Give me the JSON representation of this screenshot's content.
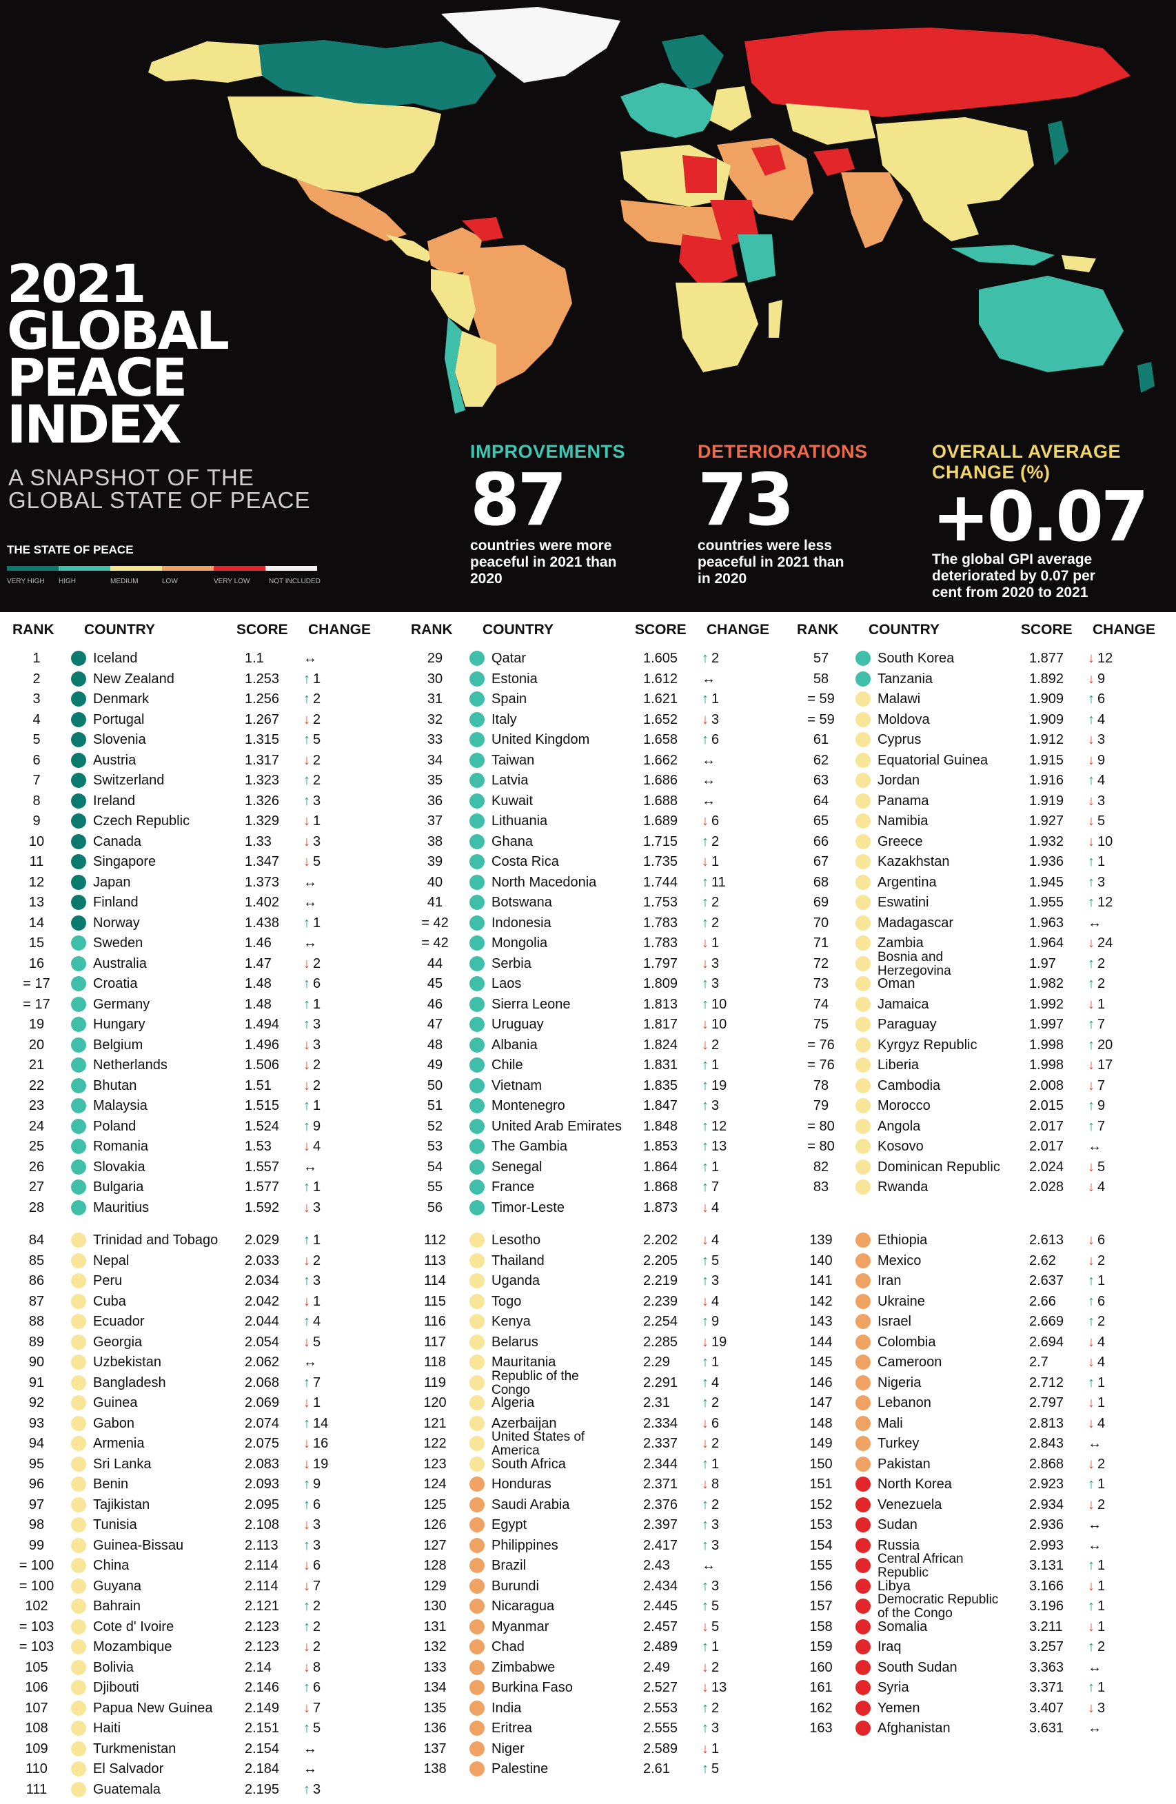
{
  "header": {
    "title_lines": [
      "2021",
      "GLOBAL",
      "PEACE",
      "INDEX"
    ],
    "subtitle_lines": [
      "A SNAPSHOT OF THE",
      "GLOBAL STATE OF PEACE"
    ]
  },
  "legend": {
    "title": "THE STATE OF PEACE",
    "items": [
      {
        "label": "VERY HIGH",
        "color": "#0b7a6e"
      },
      {
        "label": "HIGH",
        "color": "#3fbfaa"
      },
      {
        "label": "MEDIUM",
        "color": "#f4e68e"
      },
      {
        "label": "LOW",
        "color": "#f0a262"
      },
      {
        "label": "VERY LOW",
        "color": "#e3262a"
      },
      {
        "label": "NOT INCLUDED",
        "color": "#f2f2f2"
      }
    ]
  },
  "stats": [
    {
      "label": "IMPROVEMENTS",
      "value": "87",
      "desc_lines": [
        "countries were more",
        "peaceful in 2021 than",
        "2020"
      ],
      "color": "#3fc7b3"
    },
    {
      "label": "DETERIORATIONS",
      "value": "73",
      "desc_lines": [
        "countries were less",
        "peaceful in 2021 than",
        "in 2020"
      ],
      "color": "#ef6a4a"
    },
    {
      "label": "OVERALL AVERAGE",
      "label2": "CHANGE (%)",
      "value": "+0.07",
      "desc_lines": [
        "The global GPI average",
        "deteriorated by 0.07 per",
        "cent from 2020 to 2021"
      ],
      "color": "#f2d56a"
    }
  ],
  "columns": {
    "rank": "RANK",
    "country": "COUNTRY",
    "score": "SCORE",
    "change": "CHANGE"
  },
  "colors": {
    "very_high": "#0b7a6e",
    "high": "#3fbfaa",
    "medium": "#f8e598",
    "low": "#f0a262",
    "very_low": "#e3262a"
  },
  "rows": [
    [
      "1",
      "Iceland",
      "1.1",
      "eq",
      "",
      "very_high"
    ],
    [
      "2",
      "New Zealand",
      "1.253",
      "up",
      "1",
      "very_high"
    ],
    [
      "3",
      "Denmark",
      "1.256",
      "up",
      "2",
      "very_high"
    ],
    [
      "4",
      "Portugal",
      "1.267",
      "dn",
      "2",
      "very_high"
    ],
    [
      "5",
      "Slovenia",
      "1.315",
      "up",
      "5",
      "very_high"
    ],
    [
      "6",
      "Austria",
      "1.317",
      "dn",
      "2",
      "very_high"
    ],
    [
      "7",
      "Switzerland",
      "1.323",
      "up",
      "2",
      "very_high"
    ],
    [
      "8",
      "Ireland",
      "1.326",
      "up",
      "3",
      "very_high"
    ],
    [
      "9",
      "Czech Republic",
      "1.329",
      "dn",
      "1",
      "very_high"
    ],
    [
      "10",
      "Canada",
      "1.33",
      "dn",
      "3",
      "very_high"
    ],
    [
      "11",
      "Singapore",
      "1.347",
      "dn",
      "5",
      "very_high"
    ],
    [
      "12",
      "Japan",
      "1.373",
      "eq",
      "",
      "very_high"
    ],
    [
      "13",
      "Finland",
      "1.402",
      "eq",
      "",
      "very_high"
    ],
    [
      "14",
      "Norway",
      "1.438",
      "up",
      "1",
      "very_high"
    ],
    [
      "15",
      "Sweden",
      "1.46",
      "eq",
      "",
      "high"
    ],
    [
      "16",
      "Australia",
      "1.47",
      "dn",
      "2",
      "high"
    ],
    [
      "= 17",
      "Croatia",
      "1.48",
      "up",
      "6",
      "high"
    ],
    [
      "= 17",
      "Germany",
      "1.48",
      "up",
      "1",
      "high"
    ],
    [
      "19",
      "Hungary",
      "1.494",
      "up",
      "3",
      "high"
    ],
    [
      "20",
      "Belgium",
      "1.496",
      "dn",
      "3",
      "high"
    ],
    [
      "21",
      "Netherlands",
      "1.506",
      "dn",
      "2",
      "high"
    ],
    [
      "22",
      "Bhutan",
      "1.51",
      "dn",
      "2",
      "high"
    ],
    [
      "23",
      "Malaysia",
      "1.515",
      "up",
      "1",
      "high"
    ],
    [
      "24",
      "Poland",
      "1.524",
      "up",
      "9",
      "high"
    ],
    [
      "25",
      "Romania",
      "1.53",
      "dn",
      "4",
      "high"
    ],
    [
      "26",
      "Slovakia",
      "1.557",
      "eq",
      "",
      "high"
    ],
    [
      "27",
      "Bulgaria",
      "1.577",
      "up",
      "1",
      "high"
    ],
    [
      "28",
      "Mauritius",
      "1.592",
      "dn",
      "3",
      "high"
    ],
    [
      "29",
      "Qatar",
      "1.605",
      "up",
      "2",
      "high"
    ],
    [
      "30",
      "Estonia",
      "1.612",
      "eq",
      "",
      "high"
    ],
    [
      "31",
      "Spain",
      "1.621",
      "up",
      "1",
      "high"
    ],
    [
      "32",
      "Italy",
      "1.652",
      "dn",
      "3",
      "high"
    ],
    [
      "33",
      "United Kingdom",
      "1.658",
      "up",
      "6",
      "high"
    ],
    [
      "34",
      "Taiwan",
      "1.662",
      "eq",
      "",
      "high"
    ],
    [
      "35",
      "Latvia",
      "1.686",
      "eq",
      "",
      "high"
    ],
    [
      "36",
      "Kuwait",
      "1.688",
      "eq",
      "",
      "high"
    ],
    [
      "37",
      "Lithuania",
      "1.689",
      "dn",
      "6",
      "high"
    ],
    [
      "38",
      "Ghana",
      "1.715",
      "up",
      "2",
      "high"
    ],
    [
      "39",
      "Costa Rica",
      "1.735",
      "dn",
      "1",
      "high"
    ],
    [
      "40",
      "North Macedonia",
      "1.744",
      "up",
      "11",
      "high"
    ],
    [
      "41",
      "Botswana",
      "1.753",
      "up",
      "2",
      "high"
    ],
    [
      "= 42",
      "Indonesia",
      "1.783",
      "up",
      "2",
      "high"
    ],
    [
      "= 42",
      "Mongolia",
      "1.783",
      "dn",
      "1",
      "high"
    ],
    [
      "44",
      "Serbia",
      "1.797",
      "dn",
      "3",
      "high"
    ],
    [
      "45",
      "Laos",
      "1.809",
      "up",
      "3",
      "high"
    ],
    [
      "46",
      "Sierra Leone",
      "1.813",
      "up",
      "10",
      "high"
    ],
    [
      "47",
      "Uruguay",
      "1.817",
      "dn",
      "10",
      "high"
    ],
    [
      "48",
      "Albania",
      "1.824",
      "dn",
      "2",
      "high"
    ],
    [
      "49",
      "Chile",
      "1.831",
      "up",
      "1",
      "high"
    ],
    [
      "50",
      "Vietnam",
      "1.835",
      "up",
      "19",
      "high"
    ],
    [
      "51",
      "Montenegro",
      "1.847",
      "up",
      "3",
      "high"
    ],
    [
      "52",
      "United Arab Emirates",
      "1.848",
      "up",
      "12",
      "high"
    ],
    [
      "53",
      "The Gambia",
      "1.853",
      "up",
      "13",
      "high"
    ],
    [
      "54",
      "Senegal",
      "1.864",
      "up",
      "1",
      "high"
    ],
    [
      "55",
      "France",
      "1.868",
      "up",
      "7",
      "high"
    ],
    [
      "56",
      "Timor-Leste",
      "1.873",
      "dn",
      "4",
      "high"
    ],
    [
      "57",
      "South Korea",
      "1.877",
      "dn",
      "12",
      "high"
    ],
    [
      "58",
      "Tanzania",
      "1.892",
      "dn",
      "9",
      "high"
    ],
    [
      "= 59",
      "Malawi",
      "1.909",
      "up",
      "6",
      "medium"
    ],
    [
      "= 59",
      "Moldova",
      "1.909",
      "up",
      "4",
      "medium"
    ],
    [
      "61",
      "Cyprus",
      "1.912",
      "dn",
      "3",
      "medium"
    ],
    [
      "62",
      "Equatorial Guinea",
      "1.915",
      "dn",
      "9",
      "medium"
    ],
    [
      "63",
      "Jordan",
      "1.916",
      "up",
      "4",
      "medium"
    ],
    [
      "64",
      "Panama",
      "1.919",
      "dn",
      "3",
      "medium"
    ],
    [
      "65",
      "Namibia",
      "1.927",
      "dn",
      "5",
      "medium"
    ],
    [
      "66",
      "Greece",
      "1.932",
      "dn",
      "10",
      "medium"
    ],
    [
      "67",
      "Kazakhstan",
      "1.936",
      "up",
      "1",
      "medium"
    ],
    [
      "68",
      "Argentina",
      "1.945",
      "up",
      "3",
      "medium"
    ],
    [
      "69",
      "Eswatini",
      "1.955",
      "up",
      "12",
      "medium"
    ],
    [
      "70",
      "Madagascar",
      "1.963",
      "eq",
      "",
      "medium"
    ],
    [
      "71",
      "Zambia",
      "1.964",
      "dn",
      "24",
      "medium"
    ],
    [
      "72",
      "Bosnia and|Herzegovina",
      "1.97",
      "up",
      "2",
      "medium"
    ],
    [
      "73",
      "Oman",
      "1.982",
      "up",
      "2",
      "medium"
    ],
    [
      "74",
      "Jamaica",
      "1.992",
      "dn",
      "1",
      "medium"
    ],
    [
      "75",
      "Paraguay",
      "1.997",
      "up",
      "7",
      "medium"
    ],
    [
      "= 76",
      "Kyrgyz Republic",
      "1.998",
      "up",
      "20",
      "medium"
    ],
    [
      "= 76",
      "Liberia",
      "1.998",
      "dn",
      "17",
      "medium"
    ],
    [
      "78",
      "Cambodia",
      "2.008",
      "dn",
      "7",
      "medium"
    ],
    [
      "79",
      "Morocco",
      "2.015",
      "up",
      "9",
      "medium"
    ],
    [
      "= 80",
      "Angola",
      "2.017",
      "up",
      "7",
      "medium"
    ],
    [
      "= 80",
      "Kosovo",
      "2.017",
      "eq",
      "",
      "medium"
    ],
    [
      "82",
      "Dominican Republic",
      "2.024",
      "dn",
      "5",
      "medium"
    ],
    [
      "83",
      "Rwanda",
      "2.028",
      "dn",
      "4",
      "medium"
    ],
    [
      "84",
      "Trinidad and Tobago",
      "2.029",
      "up",
      "1",
      "medium"
    ],
    [
      "85",
      "Nepal",
      "2.033",
      "dn",
      "2",
      "medium"
    ],
    [
      "86",
      "Peru",
      "2.034",
      "up",
      "3",
      "medium"
    ],
    [
      "87",
      "Cuba",
      "2.042",
      "dn",
      "1",
      "medium"
    ],
    [
      "88",
      "Ecuador",
      "2.044",
      "up",
      "4",
      "medium"
    ],
    [
      "89",
      "Georgia",
      "2.054",
      "dn",
      "5",
      "medium"
    ],
    [
      "90",
      "Uzbekistan",
      "2.062",
      "eq",
      "",
      "medium"
    ],
    [
      "91",
      "Bangladesh",
      "2.068",
      "up",
      "7",
      "medium"
    ],
    [
      "92",
      "Guinea",
      "2.069",
      "dn",
      "1",
      "medium"
    ],
    [
      "93",
      "Gabon",
      "2.074",
      "up",
      "14",
      "medium"
    ],
    [
      "94",
      "Armenia",
      "2.075",
      "dn",
      "16",
      "medium"
    ],
    [
      "95",
      "Sri Lanka",
      "2.083",
      "dn",
      "19",
      "medium"
    ],
    [
      "96",
      "Benin",
      "2.093",
      "up",
      "9",
      "medium"
    ],
    [
      "97",
      "Tajikistan",
      "2.095",
      "up",
      "6",
      "medium"
    ],
    [
      "98",
      "Tunisia",
      "2.108",
      "dn",
      "3",
      "medium"
    ],
    [
      "99",
      "Guinea-Bissau",
      "2.113",
      "up",
      "3",
      "medium"
    ],
    [
      "= 100",
      "China",
      "2.114",
      "dn",
      "6",
      "medium"
    ],
    [
      "= 100",
      "Guyana",
      "2.114",
      "dn",
      "7",
      "medium"
    ],
    [
      "102",
      "Bahrain",
      "2.121",
      "up",
      "2",
      "medium"
    ],
    [
      "= 103",
      "Cote d' Ivoire",
      "2.123",
      "up",
      "2",
      "medium"
    ],
    [
      "= 103",
      "Mozambique",
      "2.123",
      "dn",
      "2",
      "medium"
    ],
    [
      "105",
      "Bolivia",
      "2.14",
      "dn",
      "8",
      "medium"
    ],
    [
      "106",
      "Djibouti",
      "2.146",
      "up",
      "6",
      "medium"
    ],
    [
      "107",
      "Papua New Guinea",
      "2.149",
      "dn",
      "7",
      "medium"
    ],
    [
      "108",
      "Haiti",
      "2.151",
      "up",
      "5",
      "medium"
    ],
    [
      "109",
      "Turkmenistan",
      "2.154",
      "eq",
      "",
      "medium"
    ],
    [
      "110",
      "El Salvador",
      "2.184",
      "eq",
      "",
      "medium"
    ],
    [
      "111",
      "Guatemala",
      "2.195",
      "up",
      "3",
      "medium"
    ],
    [
      "112",
      "Lesotho",
      "2.202",
      "dn",
      "4",
      "medium"
    ],
    [
      "113",
      "Thailand",
      "2.205",
      "up",
      "5",
      "medium"
    ],
    [
      "114",
      "Uganda",
      "2.219",
      "up",
      "3",
      "medium"
    ],
    [
      "115",
      "Togo",
      "2.239",
      "dn",
      "4",
      "medium"
    ],
    [
      "116",
      "Kenya",
      "2.254",
      "up",
      "9",
      "medium"
    ],
    [
      "117",
      "Belarus",
      "2.285",
      "dn",
      "19",
      "medium"
    ],
    [
      "118",
      "Mauritania",
      "2.29",
      "up",
      "1",
      "medium"
    ],
    [
      "119",
      "Republic of the|Congo",
      "2.291",
      "up",
      "4",
      "medium"
    ],
    [
      "120",
      "Algeria",
      "2.31",
      "up",
      "2",
      "medium"
    ],
    [
      "121",
      "Azerbaijan",
      "2.334",
      "dn",
      "6",
      "medium"
    ],
    [
      "122",
      "United States of|America",
      "2.337",
      "dn",
      "2",
      "medium"
    ],
    [
      "123",
      "South Africa",
      "2.344",
      "up",
      "1",
      "medium"
    ],
    [
      "124",
      "Honduras",
      "2.371",
      "dn",
      "8",
      "low"
    ],
    [
      "125",
      "Saudi Arabia",
      "2.376",
      "up",
      "2",
      "low"
    ],
    [
      "126",
      "Egypt",
      "2.397",
      "up",
      "3",
      "low"
    ],
    [
      "127",
      "Philippines",
      "2.417",
      "up",
      "3",
      "low"
    ],
    [
      "128",
      "Brazil",
      "2.43",
      "eq",
      "",
      "low"
    ],
    [
      "129",
      "Burundi",
      "2.434",
      "up",
      "3",
      "low"
    ],
    [
      "130",
      "Nicaragua",
      "2.445",
      "up",
      "5",
      "low"
    ],
    [
      "131",
      "Myanmar",
      "2.457",
      "dn",
      "5",
      "low"
    ],
    [
      "132",
      "Chad",
      "2.489",
      "up",
      "1",
      "low"
    ],
    [
      "133",
      "Zimbabwe",
      "2.49",
      "dn",
      "2",
      "low"
    ],
    [
      "134",
      "Burkina Faso",
      "2.527",
      "dn",
      "13",
      "low"
    ],
    [
      "135",
      "India",
      "2.553",
      "up",
      "2",
      "low"
    ],
    [
      "136",
      "Eritrea",
      "2.555",
      "up",
      "3",
      "low"
    ],
    [
      "137",
      "Niger",
      "2.589",
      "dn",
      "1",
      "low"
    ],
    [
      "138",
      "Palestine",
      "2.61",
      "up",
      "5",
      "low"
    ],
    [
      "139",
      "Ethiopia",
      "2.613",
      "dn",
      "6",
      "low"
    ],
    [
      "140",
      "Mexico",
      "2.62",
      "dn",
      "2",
      "low"
    ],
    [
      "141",
      "Iran",
      "2.637",
      "up",
      "1",
      "low"
    ],
    [
      "142",
      "Ukraine",
      "2.66",
      "up",
      "6",
      "low"
    ],
    [
      "143",
      "Israel",
      "2.669",
      "up",
      "2",
      "low"
    ],
    [
      "144",
      "Colombia",
      "2.694",
      "dn",
      "4",
      "low"
    ],
    [
      "145",
      "Cameroon",
      "2.7",
      "dn",
      "4",
      "low"
    ],
    [
      "146",
      "Nigeria",
      "2.712",
      "up",
      "1",
      "low"
    ],
    [
      "147",
      "Lebanon",
      "2.797",
      "dn",
      "1",
      "low"
    ],
    [
      "148",
      "Mali",
      "2.813",
      "dn",
      "4",
      "low"
    ],
    [
      "149",
      "Turkey",
      "2.843",
      "eq",
      "",
      "low"
    ],
    [
      "150",
      "Pakistan",
      "2.868",
      "dn",
      "2",
      "low"
    ],
    [
      "151",
      "North Korea",
      "2.923",
      "up",
      "1",
      "very_low"
    ],
    [
      "152",
      "Venezuela",
      "2.934",
      "dn",
      "2",
      "very_low"
    ],
    [
      "153",
      "Sudan",
      "2.936",
      "eq",
      "",
      "very_low"
    ],
    [
      "154",
      "Russia",
      "2.993",
      "eq",
      "",
      "very_low"
    ],
    [
      "155",
      "Central African|Republic",
      "3.131",
      "up",
      "1",
      "very_low"
    ],
    [
      "156",
      "Libya",
      "3.166",
      "dn",
      "1",
      "very_low"
    ],
    [
      "157",
      "Democratic Republic|of the Congo",
      "3.196",
      "up",
      "1",
      "very_low"
    ],
    [
      "158",
      "Somalia",
      "3.211",
      "dn",
      "1",
      "very_low"
    ],
    [
      "159",
      "Iraq",
      "3.257",
      "up",
      "2",
      "very_low"
    ],
    [
      "160",
      "South Sudan",
      "3.363",
      "eq",
      "",
      "very_low"
    ],
    [
      "161",
      "Syria",
      "3.371",
      "up",
      "1",
      "very_low"
    ],
    [
      "162",
      "Yemen",
      "3.407",
      "dn",
      "3",
      "very_low"
    ],
    [
      "163",
      "Afghanistan",
      "3.631",
      "eq",
      "",
      "very_low"
    ]
  ]
}
